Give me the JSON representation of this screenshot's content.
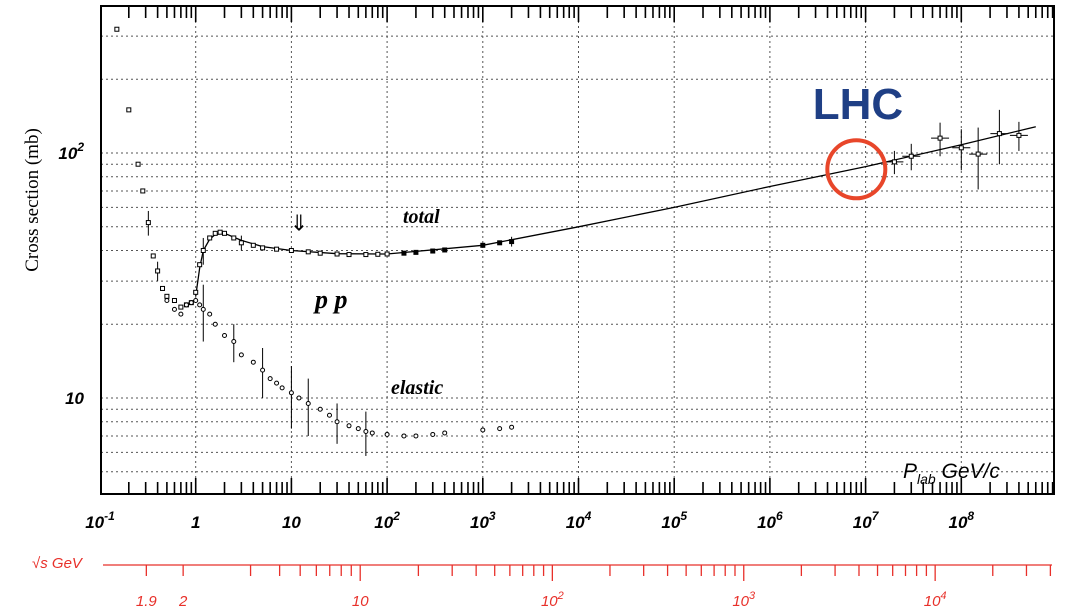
{
  "chart_data": {
    "type": "scatter",
    "title": "",
    "ylabel": "Cross section (mb)",
    "xlabel": "P",
    "xlabel_sub": "lab",
    "xlabel_unit": " GeV/c",
    "x_scale": "log",
    "y_scale": "log",
    "xlim": [
      0.1,
      700000000
    ],
    "ylim": [
      4,
      600
    ],
    "grid": true,
    "x_ticks": [
      {
        "base": "10",
        "exp": "-1",
        "value": 0.1
      },
      {
        "base": "1",
        "exp": "",
        "value": 1
      },
      {
        "base": "10",
        "exp": "",
        "value": 10
      },
      {
        "base": "10",
        "exp": "2",
        "value": 100
      },
      {
        "base": "10",
        "exp": "3",
        "value": 1000
      },
      {
        "base": "10",
        "exp": "4",
        "value": 10000
      },
      {
        "base": "10",
        "exp": "5",
        "value": 100000
      },
      {
        "base": "10",
        "exp": "6",
        "value": 1000000
      },
      {
        "base": "10",
        "exp": "7",
        "value": 10000000
      },
      {
        "base": "10",
        "exp": "8",
        "value": 100000000
      }
    ],
    "y_ticks": [
      {
        "base": "10",
        "exp": "2",
        "value": 100
      },
      {
        "base": "10",
        "exp": "",
        "value": 10
      }
    ],
    "annotations": {
      "total": "total",
      "elastic": "elastic",
      "process": "p p",
      "lhc": "LHC",
      "arrow": "⇓"
    },
    "lhc_marker": {
      "x": 8000000,
      "y": 85,
      "color": "#e8462a"
    },
    "arrow_marker": {
      "x": 12,
      "y": 52
    },
    "series": [
      {
        "name": "total",
        "points": [
          [
            0.15,
            320
          ],
          [
            0.2,
            150
          ],
          [
            0.25,
            90
          ],
          [
            0.28,
            70
          ],
          [
            0.32,
            52
          ],
          [
            0.36,
            38
          ],
          [
            0.4,
            33
          ],
          [
            0.45,
            28
          ],
          [
            0.5,
            26
          ],
          [
            0.6,
            25
          ],
          [
            0.7,
            23.5
          ],
          [
            0.8,
            24
          ],
          [
            0.9,
            24.5
          ],
          [
            1.0,
            27
          ],
          [
            1.1,
            35
          ],
          [
            1.2,
            40
          ],
          [
            1.4,
            45
          ],
          [
            1.6,
            47
          ],
          [
            1.8,
            47.5
          ],
          [
            2.0,
            47
          ],
          [
            2.5,
            45
          ],
          [
            3,
            43
          ],
          [
            4,
            42
          ],
          [
            5,
            41
          ],
          [
            7,
            40.5
          ],
          [
            10,
            40
          ],
          [
            15,
            39.5
          ],
          [
            20,
            39
          ],
          [
            30,
            38.7
          ],
          [
            40,
            38.5
          ],
          [
            60,
            38.5
          ],
          [
            80,
            38.6
          ],
          [
            100,
            38.7
          ],
          [
            150,
            39
          ],
          [
            200,
            39.3
          ],
          [
            300,
            39.8
          ],
          [
            400,
            40.2
          ],
          [
            1000,
            42
          ],
          [
            1500,
            43
          ],
          [
            2000,
            43.5
          ]
        ],
        "errors": [
          [
            0.32,
            52,
            6
          ],
          [
            0.4,
            33,
            3
          ],
          [
            1.2,
            40,
            5
          ],
          [
            3,
            43,
            3
          ],
          [
            2000,
            43.5,
            2
          ]
        ]
      },
      {
        "name": "total-high-energy",
        "points": [
          [
            20000000,
            92
          ],
          [
            30000000,
            97
          ],
          [
            60000000,
            115
          ],
          [
            100000000,
            105
          ],
          [
            150000000,
            99
          ],
          [
            250000000,
            120
          ],
          [
            400000000,
            118
          ]
        ],
        "errors": [
          [
            20000000,
            92,
            10
          ],
          [
            30000000,
            97,
            12
          ],
          [
            60000000,
            115,
            18
          ],
          [
            100000000,
            105,
            20
          ],
          [
            150000000,
            99,
            28
          ],
          [
            250000000,
            120,
            30
          ],
          [
            400000000,
            118,
            16
          ]
        ]
      },
      {
        "name": "elastic",
        "points": [
          [
            0.5,
            25
          ],
          [
            0.6,
            23
          ],
          [
            0.7,
            22
          ],
          [
            0.8,
            24
          ],
          [
            0.9,
            24.5
          ],
          [
            1.0,
            25
          ],
          [
            1.1,
            24
          ],
          [
            1.2,
            23
          ],
          [
            1.4,
            22
          ],
          [
            1.6,
            20
          ],
          [
            2.0,
            18
          ],
          [
            2.5,
            17
          ],
          [
            3,
            15
          ],
          [
            4,
            14
          ],
          [
            5,
            13
          ],
          [
            6,
            12
          ],
          [
            7,
            11.5
          ],
          [
            8,
            11
          ],
          [
            10,
            10.5
          ],
          [
            12,
            10
          ],
          [
            15,
            9.5
          ],
          [
            20,
            9
          ],
          [
            25,
            8.5
          ],
          [
            30,
            8
          ],
          [
            40,
            7.7
          ],
          [
            50,
            7.5
          ],
          [
            60,
            7.3
          ],
          [
            70,
            7.2
          ],
          [
            100,
            7.1
          ],
          [
            150,
            7.0
          ],
          [
            200,
            7.0
          ],
          [
            300,
            7.1
          ],
          [
            400,
            7.2
          ],
          [
            1000,
            7.4
          ],
          [
            1500,
            7.5
          ],
          [
            2000,
            7.6
          ]
        ],
        "errors": [
          [
            1.2,
            23,
            6
          ],
          [
            2.5,
            17,
            3
          ],
          [
            5,
            13,
            3
          ],
          [
            10,
            10.5,
            3
          ],
          [
            15,
            9.5,
            2.5
          ],
          [
            30,
            8,
            1.5
          ],
          [
            60,
            7.3,
            1.5
          ]
        ]
      }
    ],
    "fit_curve": {
      "points": [
        [
          1.0,
          26
        ],
        [
          1.1,
          34
        ],
        [
          1.2,
          40
        ],
        [
          1.4,
          44.5
        ],
        [
          1.6,
          46.5
        ],
        [
          2.0,
          47
        ],
        [
          3,
          44
        ],
        [
          5,
          41.5
        ],
        [
          10,
          40
        ],
        [
          30,
          38.8
        ],
        [
          100,
          38.7
        ],
        [
          1000,
          42
        ],
        [
          10000,
          50
        ],
        [
          100000,
          60
        ],
        [
          1000000,
          73
        ],
        [
          10000000,
          88
        ],
        [
          100000000,
          108
        ],
        [
          600000000,
          128
        ]
      ]
    },
    "sqrt_s_axis": {
      "label": "√s GeV",
      "color": "#e8302a",
      "tick_labels": [
        {
          "base": "1.9",
          "exp": "",
          "value": 1.9
        },
        {
          "base": "2",
          "exp": "",
          "value": 2
        },
        {
          "base": "10",
          "exp": "",
          "value": 10
        },
        {
          "base": "10",
          "exp": "2",
          "value": 100
        },
        {
          "base": "10",
          "exp": "3",
          "value": 1000
        },
        {
          "base": "10",
          "exp": "4",
          "value": 10000
        }
      ],
      "ticks": [
        1.9,
        2,
        3,
        4,
        5,
        6,
        7,
        8,
        9,
        10,
        20,
        30,
        40,
        50,
        60,
        70,
        80,
        90,
        100,
        200,
        300,
        400,
        500,
        600,
        700,
        800,
        900,
        1000,
        2000,
        3000,
        4000,
        5000,
        6000,
        7000,
        8000,
        9000,
        10000,
        20000,
        30000,
        40000
      ]
    }
  }
}
